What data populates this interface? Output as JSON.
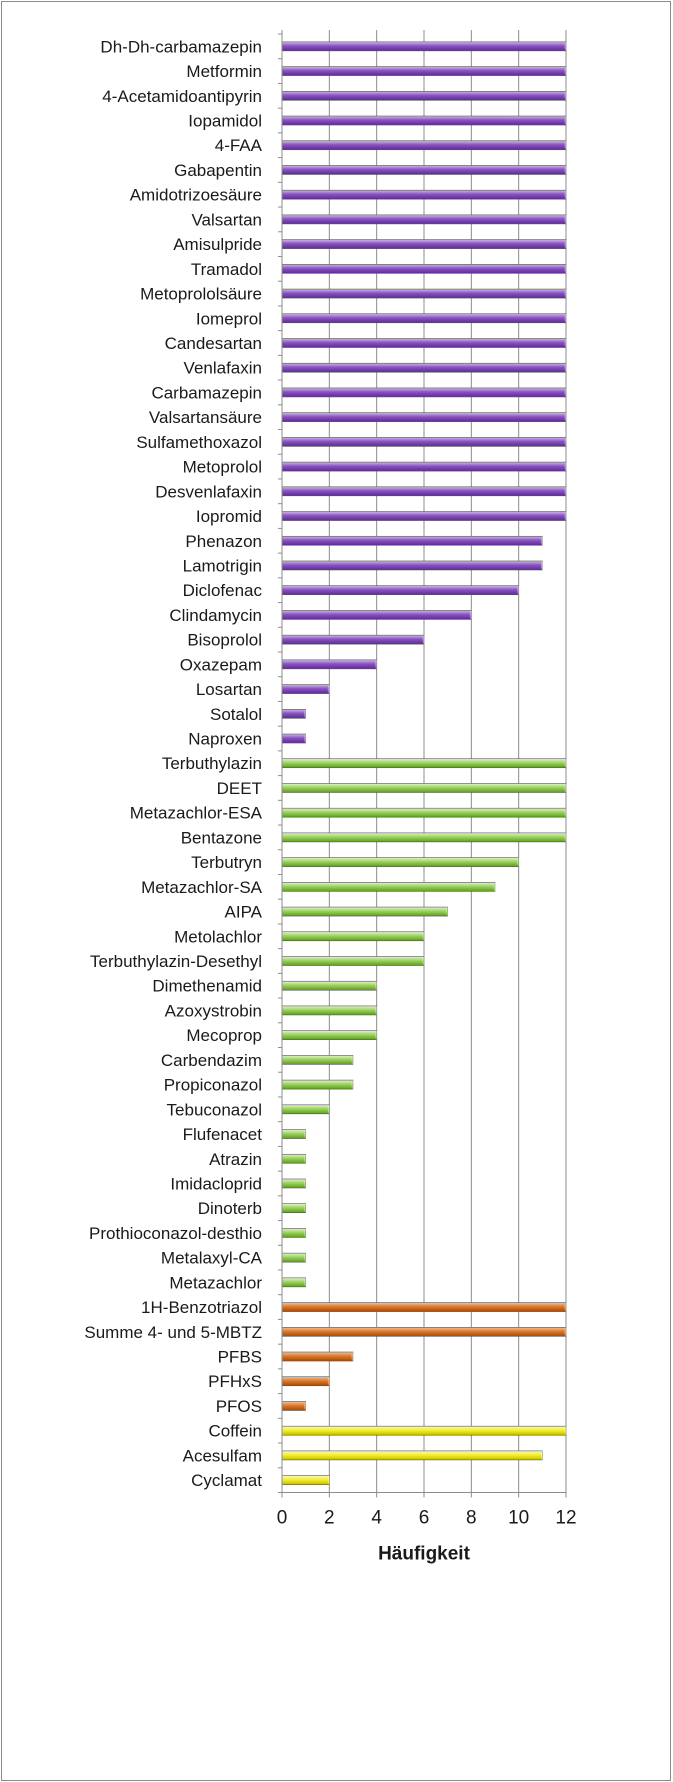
{
  "chart_data": {
    "type": "bar",
    "orientation": "horizontal",
    "title": "",
    "xlabel": "Häufigkeit",
    "ylabel": "",
    "xlim": [
      0,
      12
    ],
    "xticks": [
      0,
      2,
      4,
      6,
      8,
      10,
      12
    ],
    "grid": "vertical gridlines",
    "legend": "none",
    "colors": {
      "purple": "#8a52c4",
      "green": "#9bd45c",
      "orange": "#e0782a",
      "yellow": "#f4f02a"
    },
    "bars": [
      {
        "label": "Dh-Dh-carbamazepin",
        "value": 12,
        "color": "purple"
      },
      {
        "label": "Metformin",
        "value": 12,
        "color": "purple"
      },
      {
        "label": "4-Acetamidoantipyrin",
        "value": 12,
        "color": "purple"
      },
      {
        "label": "Iopamidol",
        "value": 12,
        "color": "purple"
      },
      {
        "label": "4-FAA",
        "value": 12,
        "color": "purple"
      },
      {
        "label": "Gabapentin",
        "value": 12,
        "color": "purple"
      },
      {
        "label": "Amidotrizoesäure",
        "value": 12,
        "color": "purple"
      },
      {
        "label": "Valsartan",
        "value": 12,
        "color": "purple"
      },
      {
        "label": "Amisulpride",
        "value": 12,
        "color": "purple"
      },
      {
        "label": "Tramadol",
        "value": 12,
        "color": "purple"
      },
      {
        "label": "Metoprololsäure",
        "value": 12,
        "color": "purple"
      },
      {
        "label": "Iomeprol",
        "value": 12,
        "color": "purple"
      },
      {
        "label": "Candesartan",
        "value": 12,
        "color": "purple"
      },
      {
        "label": "Venlafaxin",
        "value": 12,
        "color": "purple"
      },
      {
        "label": "Carbamazepin",
        "value": 12,
        "color": "purple"
      },
      {
        "label": "Valsartansäure",
        "value": 12,
        "color": "purple"
      },
      {
        "label": "Sulfamethoxazol",
        "value": 12,
        "color": "purple"
      },
      {
        "label": "Metoprolol",
        "value": 12,
        "color": "purple"
      },
      {
        "label": "Desvenlafaxin",
        "value": 12,
        "color": "purple"
      },
      {
        "label": "Iopromid",
        "value": 12,
        "color": "purple"
      },
      {
        "label": "Phenazon",
        "value": 11,
        "color": "purple"
      },
      {
        "label": "Lamotrigin",
        "value": 11,
        "color": "purple"
      },
      {
        "label": "Diclofenac",
        "value": 10,
        "color": "purple"
      },
      {
        "label": "Clindamycin",
        "value": 8,
        "color": "purple"
      },
      {
        "label": "Bisoprolol",
        "value": 6,
        "color": "purple"
      },
      {
        "label": "Oxazepam",
        "value": 4,
        "color": "purple"
      },
      {
        "label": "Losartan",
        "value": 2,
        "color": "purple"
      },
      {
        "label": "Sotalol",
        "value": 1,
        "color": "purple"
      },
      {
        "label": "Naproxen",
        "value": 1,
        "color": "purple"
      },
      {
        "label": "Terbuthylazin",
        "value": 12,
        "color": "green"
      },
      {
        "label": "DEET",
        "value": 12,
        "color": "green"
      },
      {
        "label": "Metazachlor-ESA",
        "value": 12,
        "color": "green"
      },
      {
        "label": "Bentazone",
        "value": 12,
        "color": "green"
      },
      {
        "label": "Terbutryn",
        "value": 10,
        "color": "green"
      },
      {
        "label": "Metazachlor-SA",
        "value": 9,
        "color": "green"
      },
      {
        "label": "AIPA",
        "value": 7,
        "color": "green"
      },
      {
        "label": "Metolachlor",
        "value": 6,
        "color": "green"
      },
      {
        "label": "Terbuthylazin-Desethyl",
        "value": 6,
        "color": "green"
      },
      {
        "label": "Dimethenamid",
        "value": 4,
        "color": "green"
      },
      {
        "label": "Azoxystrobin",
        "value": 4,
        "color": "green"
      },
      {
        "label": "Mecoprop",
        "value": 4,
        "color": "green"
      },
      {
        "label": "Carbendazim",
        "value": 3,
        "color": "green"
      },
      {
        "label": "Propiconazol",
        "value": 3,
        "color": "green"
      },
      {
        "label": "Tebuconazol",
        "value": 2,
        "color": "green"
      },
      {
        "label": "Flufenacet",
        "value": 1,
        "color": "green"
      },
      {
        "label": "Atrazin",
        "value": 1,
        "color": "green"
      },
      {
        "label": "Imidacloprid",
        "value": 1,
        "color": "green"
      },
      {
        "label": "Dinoterb",
        "value": 1,
        "color": "green"
      },
      {
        "label": "Prothioconazol-desthio",
        "value": 1,
        "color": "green"
      },
      {
        "label": "Metalaxyl-CA",
        "value": 1,
        "color": "green"
      },
      {
        "label": "Metazachlor",
        "value": 1,
        "color": "green"
      },
      {
        "label": "1H-Benzotriazol",
        "value": 12,
        "color": "orange"
      },
      {
        "label": "Summe  4- und 5-MBTZ",
        "value": 12,
        "color": "orange"
      },
      {
        "label": "PFBS",
        "value": 3,
        "color": "orange"
      },
      {
        "label": "PFHxS",
        "value": 2,
        "color": "orange"
      },
      {
        "label": "PFOS",
        "value": 1,
        "color": "orange"
      },
      {
        "label": "Coffein",
        "value": 12,
        "color": "yellow"
      },
      {
        "label": "Acesulfam",
        "value": 11,
        "color": "yellow"
      },
      {
        "label": "Cyclamat",
        "value": 2,
        "color": "yellow"
      }
    ]
  }
}
